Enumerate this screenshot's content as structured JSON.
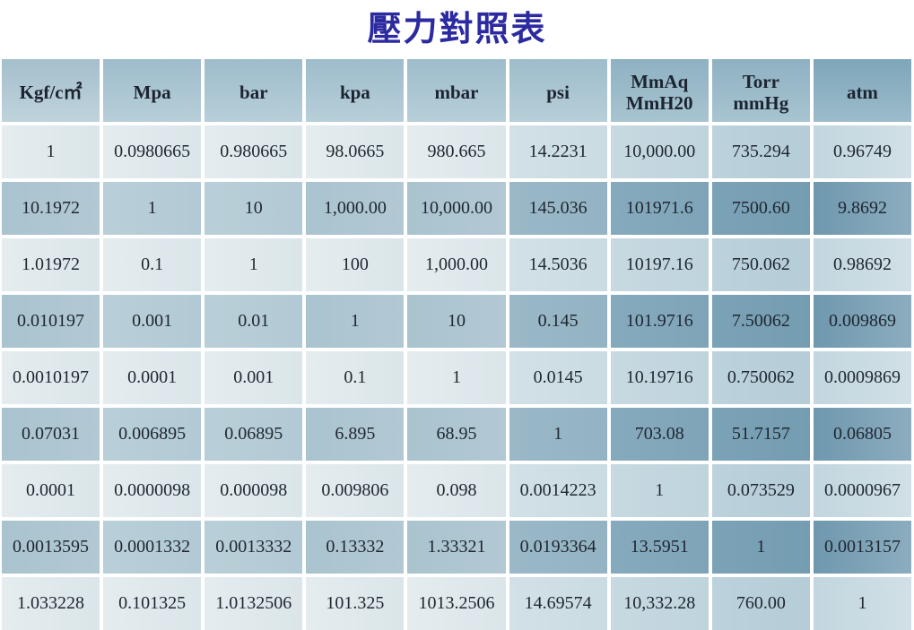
{
  "title": "壓力對照表",
  "headers": [
    [
      "Kgf/c㎡",
      ""
    ],
    [
      "Mpa",
      ""
    ],
    [
      "bar",
      ""
    ],
    [
      "kpa",
      ""
    ],
    [
      "mbar",
      ""
    ],
    [
      "psi",
      ""
    ],
    [
      "MmAq",
      "MmH20"
    ],
    [
      "Torr",
      "mmHg"
    ],
    [
      "atm",
      ""
    ]
  ],
  "rows": [
    [
      "1",
      "0.0980665",
      "0.980665",
      "98.0665",
      "980.665",
      "14.2231",
      "10,000.00",
      "735.294",
      "0.96749"
    ],
    [
      "10.1972",
      "1",
      "10",
      "1,000.00",
      "10,000.00",
      "145.036",
      "101971.6",
      "7500.60",
      "9.8692"
    ],
    [
      "1.01972",
      "0.1",
      "1",
      "100",
      "1,000.00",
      "14.5036",
      "10197.16",
      "750.062",
      "0.98692"
    ],
    [
      "0.010197",
      "0.001",
      "0.01",
      "1",
      "10",
      "0.145",
      "101.9716",
      "7.50062",
      "0.009869"
    ],
    [
      "0.0010197",
      "0.0001",
      "0.001",
      "0.1",
      "1",
      "0.0145",
      "10.19716",
      "0.750062",
      "0.0009869"
    ],
    [
      "0.07031",
      "0.006895",
      "0.06895",
      "6.895",
      "68.95",
      "1",
      "703.08",
      "51.7157",
      "0.06805"
    ],
    [
      "0.0001",
      "0.0000098",
      "0.000098",
      "0.009806",
      "0.098",
      "0.0014223",
      "1",
      "0.073529",
      "0.0000967"
    ],
    [
      "0.0013595",
      "0.0001332",
      "0.0013332",
      "0.13332",
      "1.33321",
      "0.0193364",
      "13.5951",
      "1",
      "0.0013157"
    ],
    [
      "1.033228",
      "0.101325",
      "1.0132506",
      "101.325",
      "1013.2506",
      "14.69574",
      "10,332.28",
      "760.00",
      "1"
    ]
  ],
  "colors": {
    "title": "#2c2aa0",
    "header_bg": "#9ebccb",
    "row_light_bg": "#e4ecef",
    "row_dark_bg": "#a9c3cf"
  }
}
